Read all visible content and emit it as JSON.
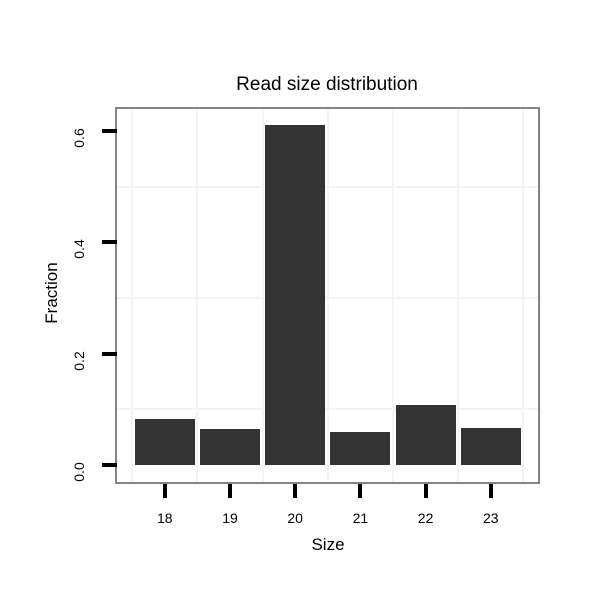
{
  "chart_data": {
    "type": "bar",
    "title": "Read size distribution",
    "xlabel": "Size",
    "ylabel": "Fraction",
    "categories": [
      "18",
      "19",
      "20",
      "21",
      "22",
      "23"
    ],
    "values": [
      0.083,
      0.065,
      0.611,
      0.06,
      0.107,
      0.066
    ],
    "y_ticks": [
      "0.0",
      "0.2",
      "0.4",
      "0.6"
    ],
    "y_tick_values": [
      0,
      0.2,
      0.4,
      0.6
    ],
    "ylim": [
      -0.032,
      0.643
    ],
    "grid": "minor-gridlines-only",
    "legend": "none",
    "colors": {
      "bar_fill": "#333333",
      "panel_border": "#848484",
      "grid_minor": "#f4f4f4",
      "axis_text": "#000000",
      "tick_mark": "#000000",
      "background": "#ffffff"
    }
  }
}
